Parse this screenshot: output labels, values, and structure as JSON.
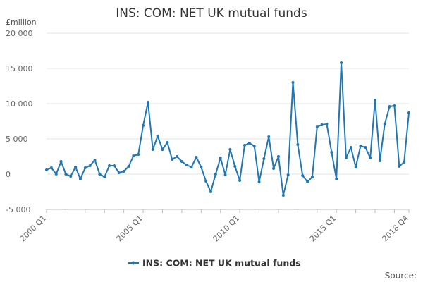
{
  "chart_data": {
    "type": "line",
    "title": "INS: COM: NET UK mutual funds",
    "ylabel": "£million",
    "xlabel": "",
    "ylim": [
      -5000,
      20000
    ],
    "y_ticks": [
      -5000,
      0,
      5000,
      10000,
      15000,
      20000
    ],
    "y_tick_labels": [
      "-5 000",
      "0",
      "5 000",
      "10 000",
      "15 000",
      "20 000"
    ],
    "x_tick_labels": [
      "2000 Q1",
      "2005 Q1",
      "2010 Q1",
      "2015 Q1",
      "2018 Q4"
    ],
    "x_tick_label_indices": [
      0,
      20,
      40,
      60,
      75
    ],
    "x_minor_tick_indices": [
      0,
      4,
      8,
      12,
      16,
      20,
      24,
      28,
      32,
      36,
      40,
      44,
      48,
      52,
      56,
      60,
      64,
      68,
      72,
      75
    ],
    "grid": true,
    "legend_position": "bottom",
    "series": [
      {
        "name": "INS: COM: NET UK mutual funds",
        "color": "#1f77b4",
        "values": [
          600,
          900,
          0,
          1800,
          0,
          -300,
          1000,
          -700,
          900,
          1200,
          2000,
          0,
          -400,
          1200,
          1200,
          200,
          400,
          1100,
          2600,
          2800,
          6900,
          10200,
          3500,
          5400,
          3500,
          4500,
          2100,
          2500,
          1800,
          1300,
          1000,
          2400,
          1000,
          -1000,
          -2500,
          0,
          2300,
          -100,
          3500,
          1100,
          -900,
          4100,
          4400,
          4000,
          -1100,
          2200,
          5300,
          800,
          2500,
          -3000,
          -100,
          13000,
          4200,
          -200,
          -1100,
          -400,
          6700,
          7000,
          7100,
          3100,
          -700,
          15800,
          2300,
          3800,
          1000,
          4000,
          3800,
          2300,
          10500,
          1900,
          7100,
          9600,
          9700,
          1100,
          1700,
          8700
        ]
      }
    ]
  },
  "footer": {
    "source_label": "Source:"
  }
}
